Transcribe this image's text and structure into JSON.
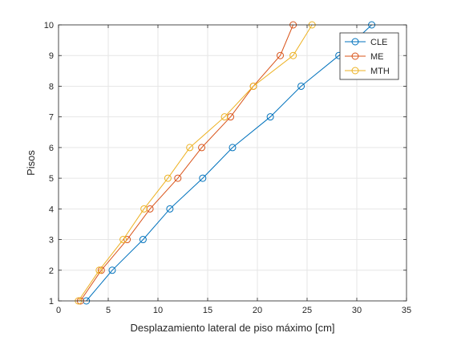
{
  "chart_data": {
    "type": "line",
    "xlabel": "Desplazamiento lateral de piso máximo [cm]",
    "ylabel": "Pisos",
    "xlim": [
      0,
      35
    ],
    "ylim": [
      1,
      10
    ],
    "xticks": [
      0,
      5,
      10,
      15,
      20,
      25,
      30,
      35
    ],
    "yticks": [
      1,
      2,
      3,
      4,
      5,
      6,
      7,
      8,
      9,
      10
    ],
    "xtick_labels": [
      "0",
      "5",
      "10",
      "15",
      "20",
      "25",
      "30",
      "35"
    ],
    "ytick_labels": [
      "1",
      "2",
      "3",
      "4",
      "5",
      "6",
      "7",
      "8",
      "9",
      "10"
    ],
    "grid": true,
    "legend": "top-right",
    "marker": "circle-open",
    "series": [
      {
        "name": "CLE",
        "color": "#0072BD",
        "x": [
          2.8,
          5.4,
          8.5,
          11.2,
          14.5,
          17.5,
          21.3,
          24.4,
          28.2,
          31.5
        ],
        "y": [
          1,
          2,
          3,
          4,
          5,
          6,
          7,
          8,
          9,
          10
        ]
      },
      {
        "name": "ME",
        "color": "#D95319",
        "x": [
          2.2,
          4.3,
          6.9,
          9.2,
          12.0,
          14.4,
          17.3,
          19.6,
          22.3,
          23.6
        ],
        "y": [
          1,
          2,
          3,
          4,
          5,
          6,
          7,
          8,
          9,
          10
        ]
      },
      {
        "name": "MTH",
        "color": "#EDB120",
        "x": [
          2.0,
          4.1,
          6.5,
          8.6,
          11.0,
          13.2,
          16.7,
          19.6,
          23.6,
          25.5
        ],
        "y": [
          1,
          2,
          3,
          4,
          5,
          6,
          7,
          8,
          9,
          10
        ]
      }
    ]
  }
}
